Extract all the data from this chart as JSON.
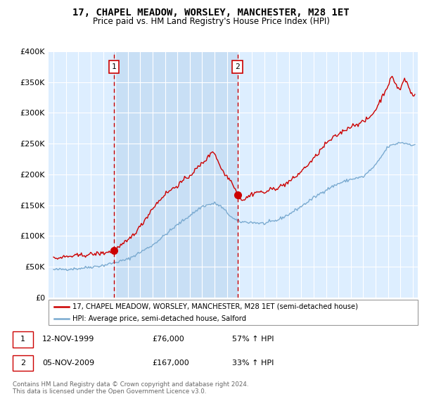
{
  "title": "17, CHAPEL MEADOW, WORSLEY, MANCHESTER, M28 1ET",
  "subtitle": "Price paid vs. HM Land Registry's House Price Index (HPI)",
  "legend_line1": "17, CHAPEL MEADOW, WORSLEY, MANCHESTER, M28 1ET (semi-detached house)",
  "legend_line2": "HPI: Average price, semi-detached house, Salford",
  "footnote": "Contains HM Land Registry data © Crown copyright and database right 2024.\nThis data is licensed under the Open Government Licence v3.0.",
  "transaction1_date": "12-NOV-1999",
  "transaction1_price": "£76,000",
  "transaction1_hpi": "57% ↑ HPI",
  "transaction1_year": 1999.87,
  "transaction1_value": 76000,
  "transaction2_date": "05-NOV-2009",
  "transaction2_price": "£167,000",
  "transaction2_hpi": "33% ↑ HPI",
  "transaction2_year": 2009.85,
  "transaction2_value": 167000,
  "red_color": "#cc0000",
  "blue_color": "#7aaad0",
  "bg_color": "#ddeeff",
  "shade_color": "#c8dff5",
  "grid_color": "#ffffff",
  "ylim": [
    0,
    400000
  ],
  "yticks": [
    0,
    50000,
    100000,
    150000,
    200000,
    250000,
    300000,
    350000,
    400000
  ],
  "xmin": 1994.6,
  "xmax": 2024.4
}
